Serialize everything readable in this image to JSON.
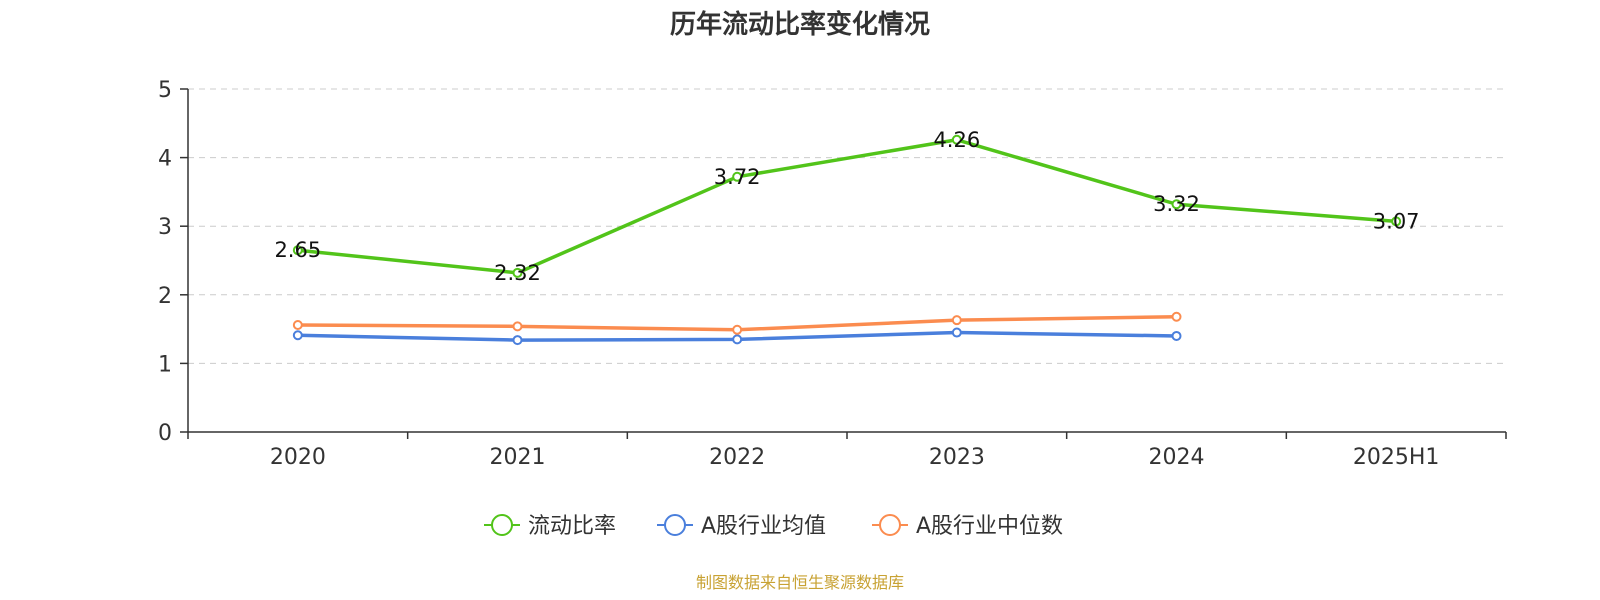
{
  "chart_data": {
    "type": "line",
    "title": "历年流动比率变化情况",
    "categories": [
      "2020",
      "2021",
      "2022",
      "2023",
      "2024",
      "2025H1"
    ],
    "ylim": [
      0,
      5
    ],
    "yticks": [
      "0",
      "1",
      "2",
      "3",
      "4",
      "5"
    ],
    "grid": true,
    "legend_position": "bottom-center",
    "series": [
      {
        "name": "流动比率",
        "color": "#52c41a",
        "values": [
          2.65,
          2.32,
          3.72,
          4.26,
          3.32,
          3.07
        ],
        "labels": [
          "2.65",
          "2.32",
          "3.72",
          "4.26",
          "3.32",
          "3.07"
        ],
        "show_labels": true
      },
      {
        "name": "A股行业均值",
        "color": "#4a7fdc",
        "values": [
          1.41,
          1.34,
          1.35,
          1.45,
          1.4,
          null
        ],
        "show_labels": false
      },
      {
        "name": "A股行业中位数",
        "color": "#fb8c4f",
        "values": [
          1.56,
          1.54,
          1.49,
          1.63,
          1.68,
          null
        ],
        "show_labels": false
      }
    ]
  },
  "source_note": "制图数据来自恒生聚源数据库"
}
